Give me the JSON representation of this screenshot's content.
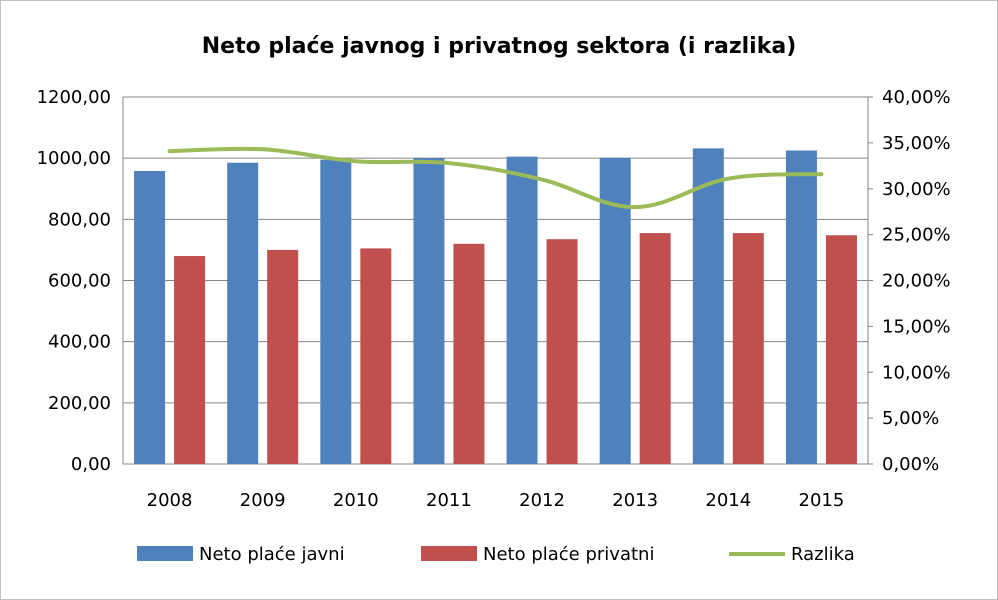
{
  "chart_data": {
    "type": "bar",
    "title": "Neto plaće javnog i privatnog sektora (i razlika)",
    "categories": [
      "2008",
      "2009",
      "2010",
      "2011",
      "2012",
      "2013",
      "2014",
      "2015"
    ],
    "series": [
      {
        "name": "Neto plaće javni",
        "type": "bar",
        "axis": "left",
        "color": "#4F81BD",
        "values": [
          958,
          985,
          995,
          1000,
          1005,
          1001,
          1032,
          1025
        ]
      },
      {
        "name": "Neto plaće privatni",
        "type": "bar",
        "axis": "left",
        "color": "#C0504D",
        "values": [
          680,
          700,
          705,
          720,
          735,
          755,
          755,
          748
        ]
      },
      {
        "name": "Razlika",
        "type": "line",
        "axis": "right",
        "color": "#9BBB59",
        "values": [
          34.1,
          34.3,
          33.0,
          32.8,
          31.0,
          28.0,
          31.1,
          31.6
        ]
      }
    ],
    "y_left": {
      "min": 0,
      "max": 1200,
      "ticks": [
        "0,00",
        "200,00",
        "400,00",
        "600,00",
        "800,00",
        "1000,00",
        "1200,00"
      ]
    },
    "y_right": {
      "min": 0,
      "max": 40,
      "ticks": [
        "0,00%",
        "5,00%",
        "10,00%",
        "15,00%",
        "20,00%",
        "25,00%",
        "30,00%",
        "35,00%",
        "40,00%"
      ]
    },
    "grid": true,
    "legend_position": "bottom"
  }
}
